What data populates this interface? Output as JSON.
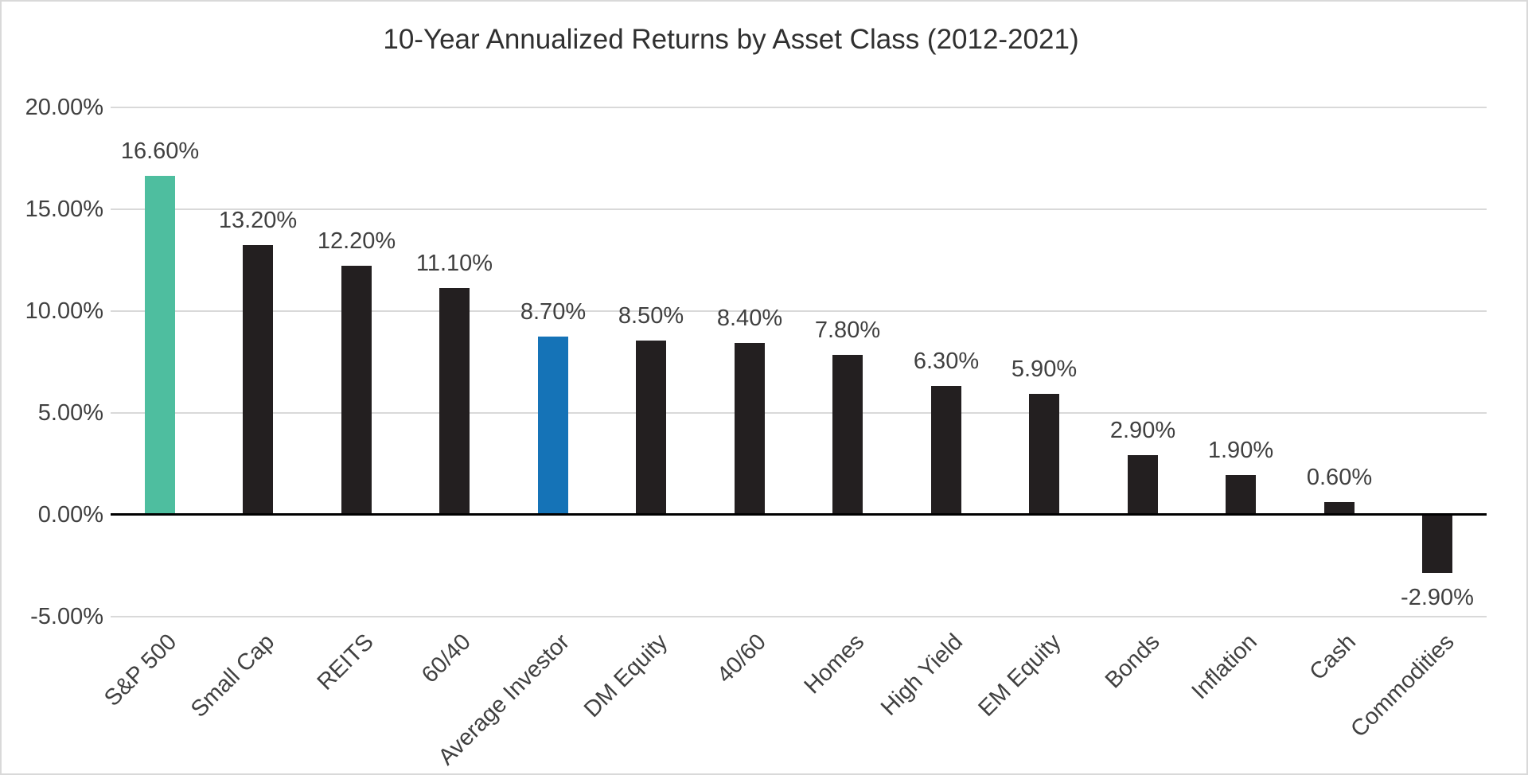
{
  "title": "10-Year Annualized Returns by Asset Class (2012-2021)",
  "chart_data": {
    "type": "bar",
    "title": "10-Year Annualized Returns by Asset Class (2012-2021)",
    "categories": [
      "S&P 500",
      "Small Cap",
      "REITS",
      "60/40",
      "Average Investor",
      "DM Equity",
      "40/60",
      "Homes",
      "High Yield",
      "EM Equity",
      "Bonds",
      "Inflation",
      "Cash",
      "Commodities"
    ],
    "values": [
      16.6,
      13.2,
      12.2,
      11.1,
      8.7,
      8.5,
      8.4,
      7.8,
      6.3,
      5.9,
      2.9,
      1.9,
      0.6,
      -2.9
    ],
    "value_labels": [
      "16.60%",
      "13.20%",
      "12.20%",
      "11.10%",
      "8.70%",
      "8.50%",
      "8.40%",
      "7.80%",
      "6.30%",
      "5.90%",
      "2.90%",
      "1.90%",
      "0.60%",
      "-2.90%"
    ],
    "bar_colors": [
      "#4EBE9F",
      "#231F20",
      "#231F20",
      "#231F20",
      "#1573B7",
      "#231F20",
      "#231F20",
      "#231F20",
      "#231F20",
      "#231F20",
      "#231F20",
      "#231F20",
      "#231F20",
      "#231F20"
    ],
    "xlabel": "",
    "ylabel": "",
    "y_ticks": [
      {
        "value": 20,
        "label": "20.00%"
      },
      {
        "value": 15,
        "label": "15.00%"
      },
      {
        "value": 10,
        "label": "10.00%"
      },
      {
        "value": 5,
        "label": "5.00%"
      },
      {
        "value": 0,
        "label": "0.00%"
      },
      {
        "value": -5,
        "label": "-5.00%"
      }
    ],
    "ylim": [
      -5,
      20
    ],
    "grid": true,
    "legend_position": "none",
    "x_label_rotation_deg": 45
  },
  "colors": {
    "default_bar": "#231F20",
    "highlight_teal": "#4EBE9F",
    "highlight_blue": "#1573B7",
    "gridline": "#D9D9D9",
    "zero_line": "#000000",
    "text": "#404040",
    "title_text": "#303030",
    "background": "#FFFFFF",
    "border": "#D9D9D9"
  }
}
